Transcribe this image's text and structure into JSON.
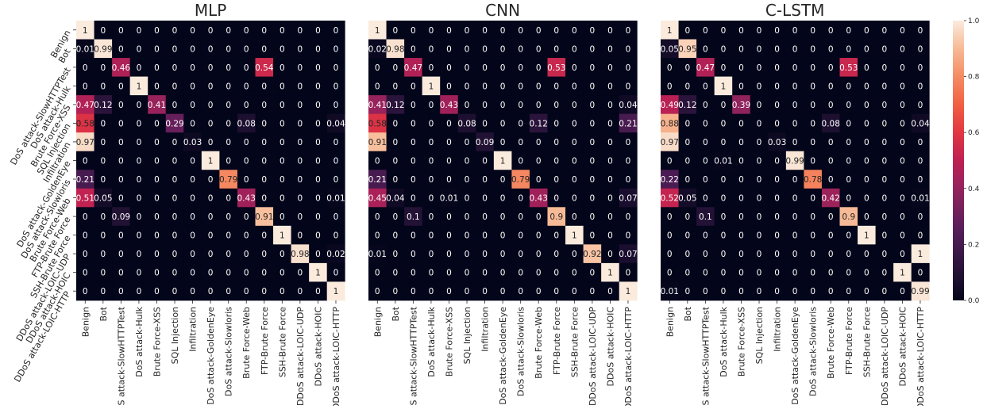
{
  "chart_data": {
    "type": "heatmap",
    "categories": [
      "Benign",
      "Bot",
      "DoS attack-SlowHTTPTest",
      "DoS attack-Hulk",
      "Brute Force-XSS",
      "SQL Injection",
      "Infiltration",
      "DoS attack-GoldenEye",
      "DoS attack-Slowloris",
      "Brute Force-Web",
      "FTP-Brute Force",
      "SSH-Brute Force",
      "DDoS attack-LOIC-UDP",
      "DDoS attack-HOIC",
      "DDoS attack-LOIC-HTTP"
    ],
    "colorbar": {
      "min": 0,
      "max": 1,
      "ticks": [
        "0.0",
        "0.2",
        "0.4",
        "0.6",
        "0.8",
        "1.0"
      ]
    },
    "panels": [
      {
        "title": "MLP",
        "matrix": [
          [
            1,
            0,
            0,
            0,
            0,
            0,
            0,
            0,
            0,
            0,
            0,
            0,
            0,
            0,
            0
          ],
          [
            0.01,
            0.99,
            0,
            0,
            0,
            0,
            0,
            0,
            0,
            0,
            0,
            0,
            0,
            0,
            0
          ],
          [
            0,
            0,
            0.46,
            0,
            0,
            0,
            0,
            0,
            0,
            0,
            0.54,
            0,
            0,
            0,
            0
          ],
          [
            0,
            0,
            0,
            1,
            0,
            0,
            0,
            0,
            0,
            0,
            0,
            0,
            0,
            0,
            0
          ],
          [
            0.47,
            0.12,
            0,
            0,
            0.41,
            0,
            0,
            0,
            0,
            0,
            0,
            0,
            0,
            0,
            0
          ],
          [
            0.58,
            0,
            0,
            0,
            0,
            0.29,
            0,
            0,
            0,
            0.08,
            0,
            0,
            0,
            0,
            0.04
          ],
          [
            0.97,
            0,
            0,
            0,
            0,
            0,
            0.03,
            0,
            0,
            0,
            0,
            0,
            0,
            0,
            0
          ],
          [
            0,
            0,
            0,
            0,
            0,
            0,
            0,
            1,
            0,
            0,
            0,
            0,
            0,
            0,
            0
          ],
          [
            0.21,
            0,
            0,
            0,
            0,
            0,
            0,
            0,
            0.79,
            0,
            0,
            0,
            0,
            0,
            0
          ],
          [
            0.51,
            0.05,
            0,
            0,
            0,
            0,
            0,
            0,
            0,
            0.43,
            0,
            0,
            0,
            0,
            0.01
          ],
          [
            0,
            0,
            0.09,
            0,
            0,
            0,
            0,
            0,
            0,
            0,
            0.91,
            0,
            0,
            0,
            0
          ],
          [
            0,
            0,
            0,
            0,
            0,
            0,
            0,
            0,
            0,
            0,
            0,
            1,
            0,
            0,
            0
          ],
          [
            0,
            0,
            0,
            0,
            0,
            0,
            0,
            0,
            0,
            0,
            0,
            0,
            0.98,
            0,
            0.02
          ],
          [
            0,
            0,
            0,
            0,
            0,
            0,
            0,
            0,
            0,
            0,
            0,
            0,
            0,
            1,
            0
          ],
          [
            0,
            0,
            0,
            0,
            0,
            0,
            0,
            0,
            0,
            0,
            0,
            0,
            0,
            0,
            1
          ]
        ]
      },
      {
        "title": "CNN",
        "matrix": [
          [
            1,
            0,
            0,
            0,
            0,
            0,
            0,
            0,
            0,
            0,
            0,
            0,
            0,
            0,
            0
          ],
          [
            0.02,
            0.98,
            0,
            0,
            0,
            0,
            0,
            0,
            0,
            0,
            0,
            0,
            0,
            0,
            0
          ],
          [
            0,
            0,
            0.47,
            0,
            0,
            0,
            0,
            0,
            0,
            0,
            0.53,
            0,
            0,
            0,
            0
          ],
          [
            0,
            0,
            0,
            1,
            0,
            0,
            0,
            0,
            0,
            0,
            0,
            0,
            0,
            0,
            0
          ],
          [
            0.41,
            0.12,
            0,
            0,
            0.43,
            0,
            0,
            0,
            0,
            0,
            0,
            0,
            0,
            0,
            0.04
          ],
          [
            0.58,
            0,
            0,
            0,
            0,
            0.08,
            0,
            0,
            0,
            0.12,
            0,
            0,
            0,
            0,
            0.21
          ],
          [
            0.91,
            0,
            0,
            0,
            0,
            0,
            0.09,
            0,
            0,
            0,
            0,
            0,
            0,
            0,
            0
          ],
          [
            0,
            0,
            0,
            0,
            0,
            0,
            0,
            1,
            0,
            0,
            0,
            0,
            0,
            0,
            0
          ],
          [
            0.21,
            0,
            0,
            0,
            0,
            0,
            0,
            0,
            0.79,
            0,
            0,
            0,
            0,
            0,
            0
          ],
          [
            0.45,
            0.04,
            0,
            0,
            0.01,
            0,
            0,
            0,
            0,
            0.43,
            0,
            0,
            0,
            0,
            0.07
          ],
          [
            0,
            0,
            0.1,
            0,
            0,
            0,
            0,
            0,
            0,
            0,
            0.9,
            0,
            0,
            0,
            0
          ],
          [
            0,
            0,
            0,
            0,
            0,
            0,
            0,
            0,
            0,
            0,
            0,
            1,
            0,
            0,
            0
          ],
          [
            0.01,
            0,
            0,
            0,
            0,
            0,
            0,
            0,
            0,
            0,
            0,
            0,
            0.92,
            0,
            0.07
          ],
          [
            0,
            0,
            0,
            0,
            0,
            0,
            0,
            0,
            0,
            0,
            0,
            0,
            0,
            1,
            0
          ],
          [
            0,
            0,
            0,
            0,
            0,
            0,
            0,
            0,
            0,
            0,
            0,
            0,
            0,
            0,
            1
          ]
        ]
      },
      {
        "title": "C-LSTM",
        "matrix": [
          [
            1,
            0,
            0,
            0,
            0,
            0,
            0,
            0,
            0,
            0,
            0,
            0,
            0,
            0,
            0
          ],
          [
            0.05,
            0.95,
            0,
            0,
            0,
            0,
            0,
            0,
            0,
            0,
            0,
            0,
            0,
            0,
            0
          ],
          [
            0,
            0,
            0.47,
            0,
            0,
            0,
            0,
            0,
            0,
            0,
            0.53,
            0,
            0,
            0,
            0
          ],
          [
            0,
            0,
            0,
            1,
            0,
            0,
            0,
            0,
            0,
            0,
            0,
            0,
            0,
            0,
            0
          ],
          [
            0.49,
            0.12,
            0,
            0,
            0.39,
            0,
            0,
            0,
            0,
            0,
            0,
            0,
            0,
            0,
            0
          ],
          [
            0.88,
            0,
            0,
            0,
            0,
            0,
            0,
            0,
            0,
            0.08,
            0,
            0,
            0,
            0,
            0.04
          ],
          [
            0.97,
            0,
            0,
            0,
            0,
            0,
            0.03,
            0,
            0,
            0,
            0,
            0,
            0,
            0,
            0
          ],
          [
            0,
            0,
            0,
            0.01,
            0,
            0,
            0,
            0.99,
            0,
            0,
            0,
            0,
            0,
            0,
            0
          ],
          [
            0.22,
            0,
            0,
            0,
            0,
            0,
            0,
            0,
            0.78,
            0,
            0,
            0,
            0,
            0,
            0
          ],
          [
            0.52,
            0.05,
            0,
            0,
            0,
            0,
            0,
            0,
            0,
            0.42,
            0,
            0,
            0,
            0,
            0.01
          ],
          [
            0,
            0,
            0.1,
            0,
            0,
            0,
            0,
            0,
            0,
            0,
            0.9,
            0,
            0,
            0,
            0
          ],
          [
            0,
            0,
            0,
            0,
            0,
            0,
            0,
            0,
            0,
            0,
            0,
            1,
            0,
            0,
            0
          ],
          [
            0,
            0,
            0,
            0,
            0,
            0,
            0,
            0,
            0,
            0,
            0,
            0,
            0,
            0,
            1
          ],
          [
            0,
            0,
            0,
            0,
            0,
            0,
            0,
            0,
            0,
            0,
            0,
            0,
            0,
            1,
            0
          ],
          [
            0.01,
            0,
            0,
            0,
            0,
            0,
            0,
            0,
            0,
            0,
            0,
            0,
            0,
            0,
            0.99
          ]
        ]
      }
    ]
  }
}
